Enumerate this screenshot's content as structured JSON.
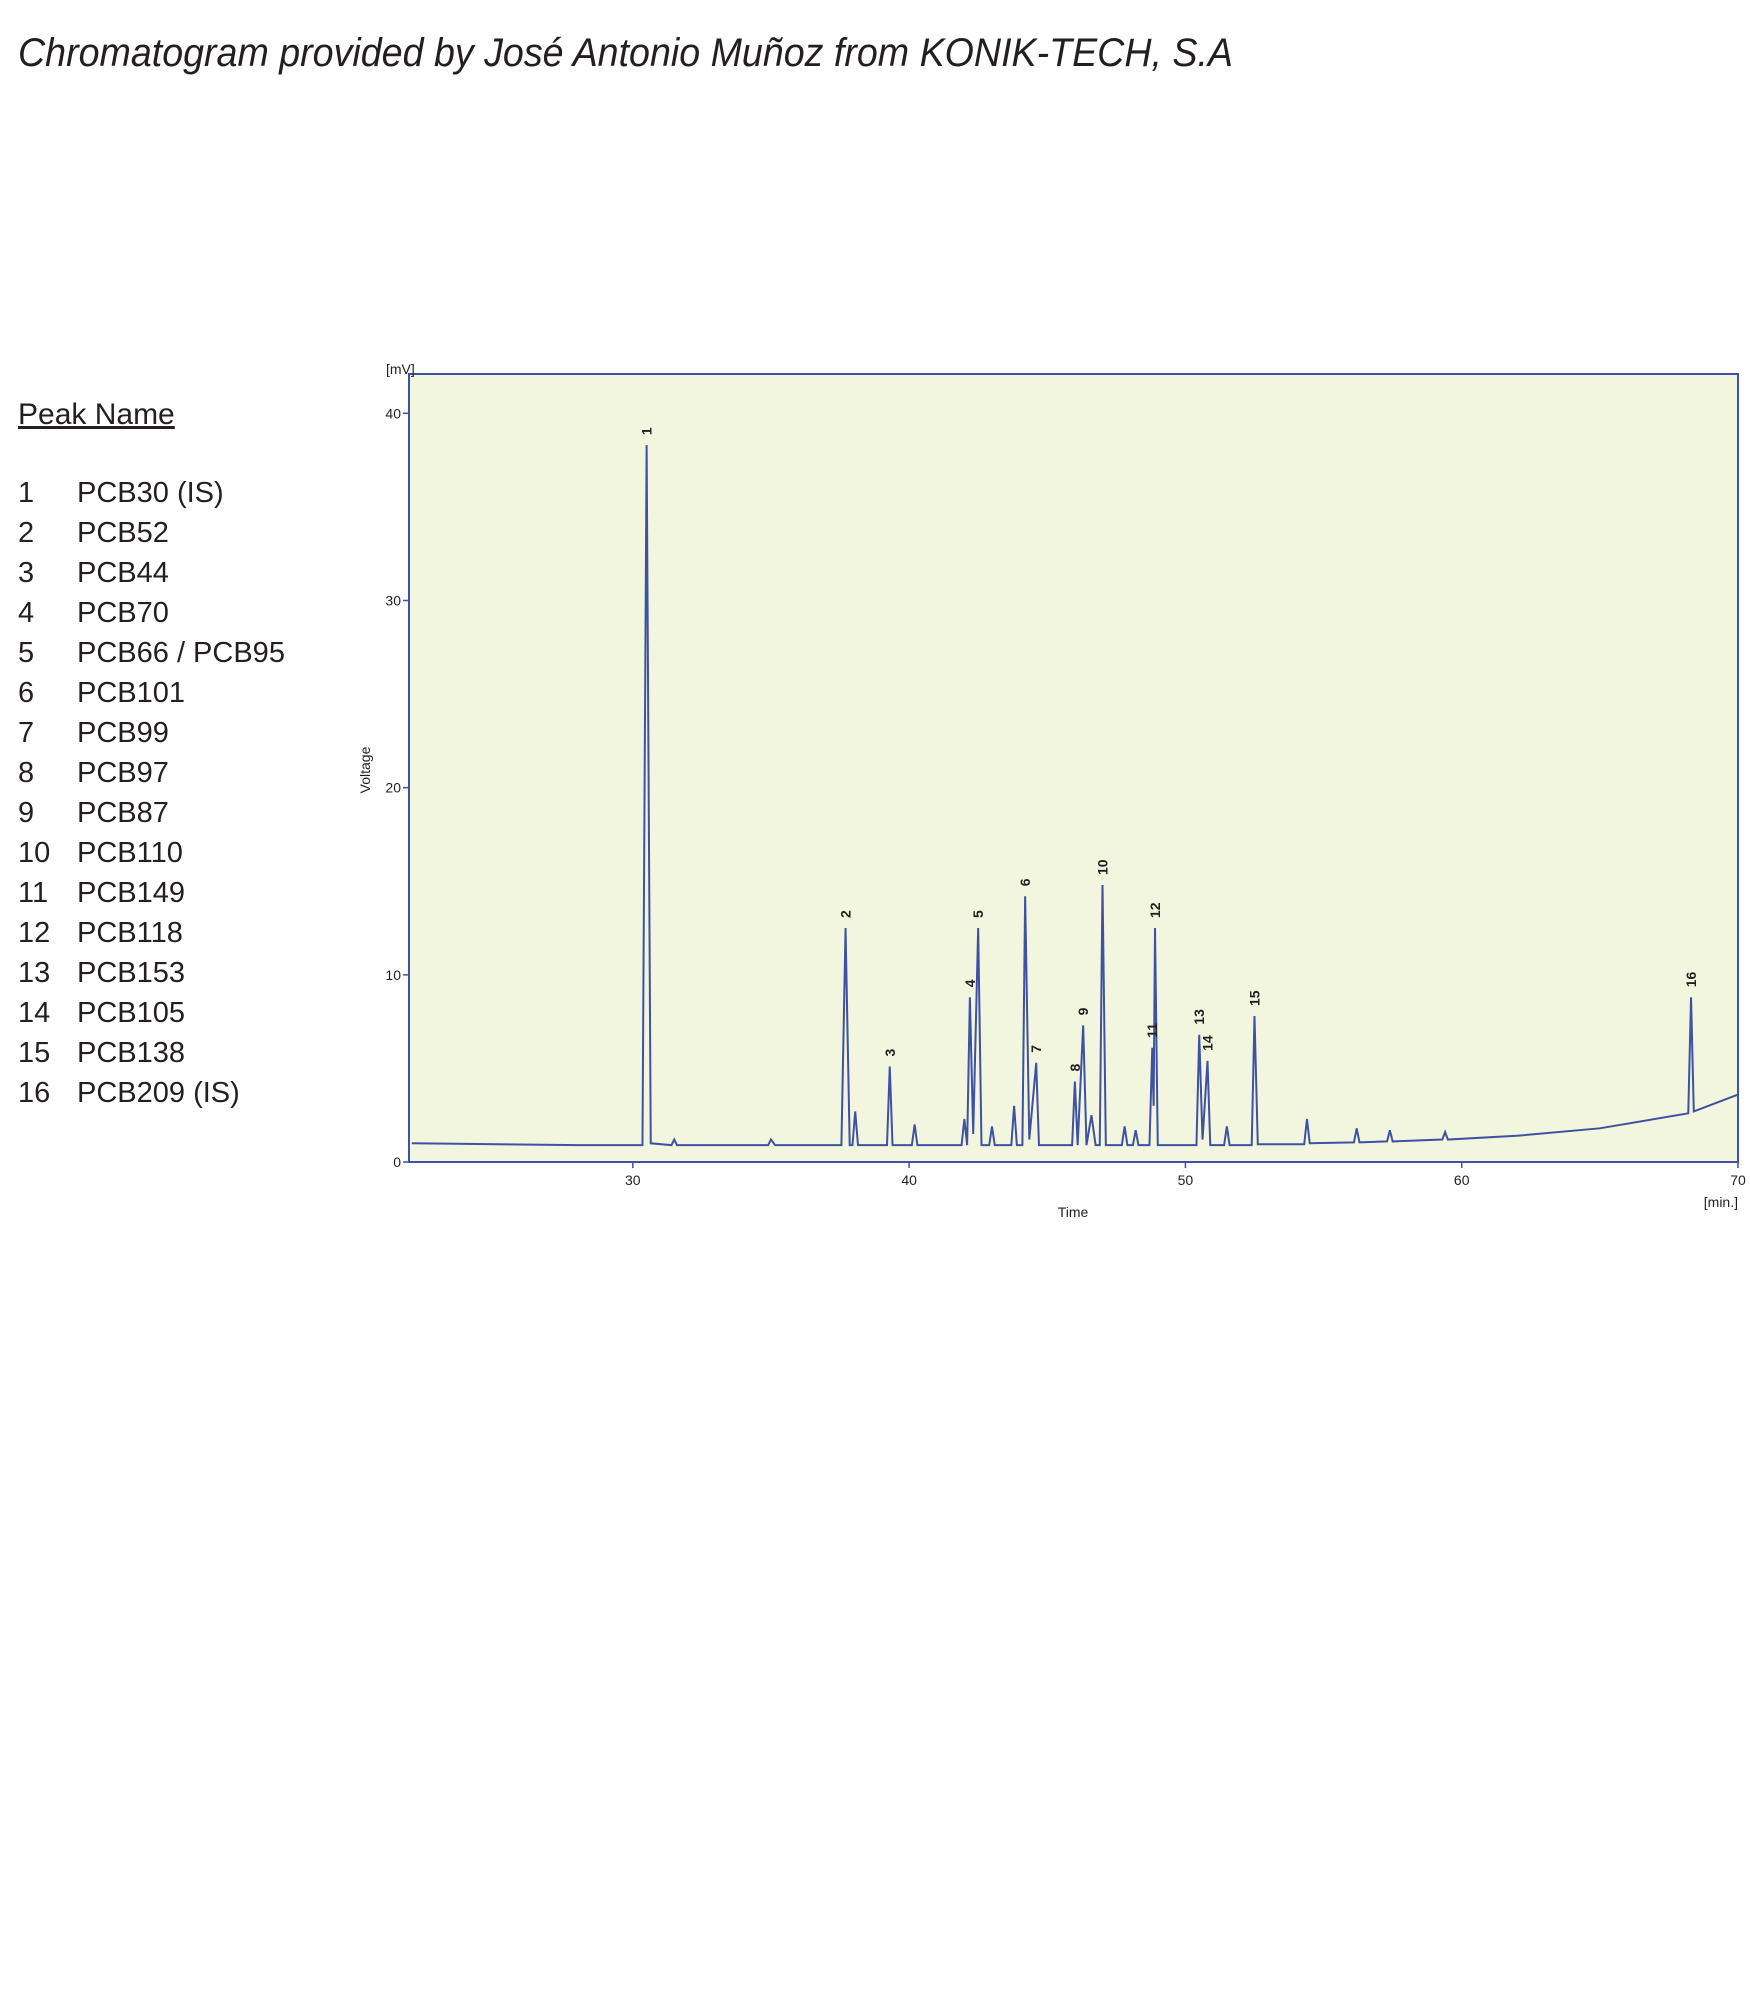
{
  "chart_data": {
    "type": "line",
    "title": "Chromatogram provided by José Antonio Muñoz from KONIK-TECH, S.A",
    "x_label": "Time",
    "y_label": "Voltage",
    "x_unit": "[min.]",
    "y_unit": "[mV]",
    "xlim": [
      21.9,
      70
    ],
    "ylim": [
      0,
      42.1
    ],
    "xticks": [
      30,
      40,
      50,
      60,
      70
    ],
    "yticks": [
      0,
      10,
      20,
      30,
      40
    ],
    "background": "#f2f6de",
    "series": [
      {
        "color": "#3e51a3",
        "x": [
          22.0,
          28.0,
          30.35,
          30.5,
          30.65,
          31.4,
          31.5,
          31.6,
          34.9,
          35.0,
          35.15,
          37.55,
          37.7,
          37.85,
          37.95,
          38.05,
          38.15,
          39.2,
          39.3,
          39.4,
          40.1,
          40.2,
          40.3,
          41.9,
          42.0,
          42.1,
          42.2,
          42.32,
          42.5,
          42.62,
          42.9,
          43.0,
          43.1,
          43.7,
          43.8,
          43.9,
          44.1,
          44.2,
          44.35,
          44.6,
          44.7,
          45.9,
          46.0,
          46.1,
          46.3,
          46.42,
          46.6,
          46.75,
          46.9,
          47.0,
          47.12,
          47.7,
          47.8,
          47.9,
          48.1,
          48.2,
          48.3,
          48.7,
          48.8,
          48.85,
          48.9,
          49.0,
          50.4,
          50.5,
          50.62,
          50.8,
          50.9,
          51.4,
          51.5,
          51.6,
          52.4,
          52.5,
          52.62,
          54.3,
          54.4,
          54.5,
          56.1,
          56.2,
          56.3,
          57.3,
          57.4,
          57.5,
          59.3,
          59.4,
          59.5,
          62.0,
          65.0,
          68.2,
          68.3,
          68.4,
          70.0
        ],
        "values": [
          1.0,
          0.9,
          0.9,
          38.3,
          1.0,
          0.9,
          1.2,
          0.9,
          0.9,
          1.2,
          0.9,
          0.9,
          12.5,
          0.9,
          0.9,
          2.7,
          0.9,
          0.9,
          5.1,
          0.9,
          0.9,
          2.0,
          0.9,
          0.9,
          2.3,
          0.9,
          8.8,
          1.5,
          12.5,
          0.9,
          0.9,
          1.9,
          0.9,
          0.9,
          3.0,
          0.9,
          0.9,
          14.2,
          1.2,
          5.3,
          0.9,
          0.9,
          4.3,
          0.9,
          7.3,
          0.9,
          2.5,
          0.9,
          0.9,
          14.8,
          0.9,
          0.9,
          1.9,
          0.9,
          0.9,
          1.7,
          0.9,
          0.9,
          6.1,
          3.0,
          12.5,
          0.9,
          0.9,
          6.8,
          1.2,
          5.4,
          0.9,
          0.9,
          1.9,
          0.9,
          0.9,
          7.8,
          0.95,
          0.95,
          2.3,
          1.0,
          1.05,
          1.8,
          1.05,
          1.1,
          1.7,
          1.1,
          1.2,
          1.6,
          1.2,
          1.4,
          1.8,
          2.6,
          8.8,
          2.7,
          3.6
        ]
      }
    ],
    "peaks": [
      {
        "label": "1",
        "x": 30.5,
        "y": 38.3
      },
      {
        "label": "2",
        "x": 37.7,
        "y": 12.5
      },
      {
        "label": "3",
        "x": 39.3,
        "y": 5.1
      },
      {
        "label": "4",
        "x": 42.2,
        "y": 8.8
      },
      {
        "label": "5",
        "x": 42.5,
        "y": 12.5
      },
      {
        "label": "6",
        "x": 44.2,
        "y": 14.2
      },
      {
        "label": "7",
        "x": 44.6,
        "y": 5.3
      },
      {
        "label": "8",
        "x": 46.0,
        "y": 4.3
      },
      {
        "label": "9",
        "x": 46.3,
        "y": 7.3
      },
      {
        "label": "10",
        "x": 47.0,
        "y": 14.8
      },
      {
        "label": "11",
        "x": 48.8,
        "y": 6.1
      },
      {
        "label": "12",
        "x": 48.9,
        "y": 12.5
      },
      {
        "label": "13",
        "x": 50.5,
        "y": 6.8
      },
      {
        "label": "14",
        "x": 50.8,
        "y": 5.4
      },
      {
        "label": "15",
        "x": 52.5,
        "y": 7.8
      },
      {
        "label": "16",
        "x": 68.3,
        "y": 8.8
      }
    ],
    "peak_table": {
      "heading": "Peak Name",
      "rows": [
        [
          "1",
          "PCB30 (IS)"
        ],
        [
          "2",
          "PCB52"
        ],
        [
          "3",
          "PCB44"
        ],
        [
          "4",
          "PCB70"
        ],
        [
          "5",
          "PCB66 / PCB95"
        ],
        [
          "6",
          "PCB101"
        ],
        [
          "7",
          "PCB99"
        ],
        [
          "8",
          "PCB97"
        ],
        [
          "9",
          "PCB87"
        ],
        [
          "10",
          "PCB110"
        ],
        [
          "11",
          "PCB149"
        ],
        [
          "12",
          "PCB118"
        ],
        [
          "13",
          "PCB153"
        ],
        [
          "14",
          "PCB105"
        ],
        [
          "15",
          "PCB138"
        ],
        [
          "16",
          "PCB209 (IS)"
        ]
      ]
    }
  }
}
